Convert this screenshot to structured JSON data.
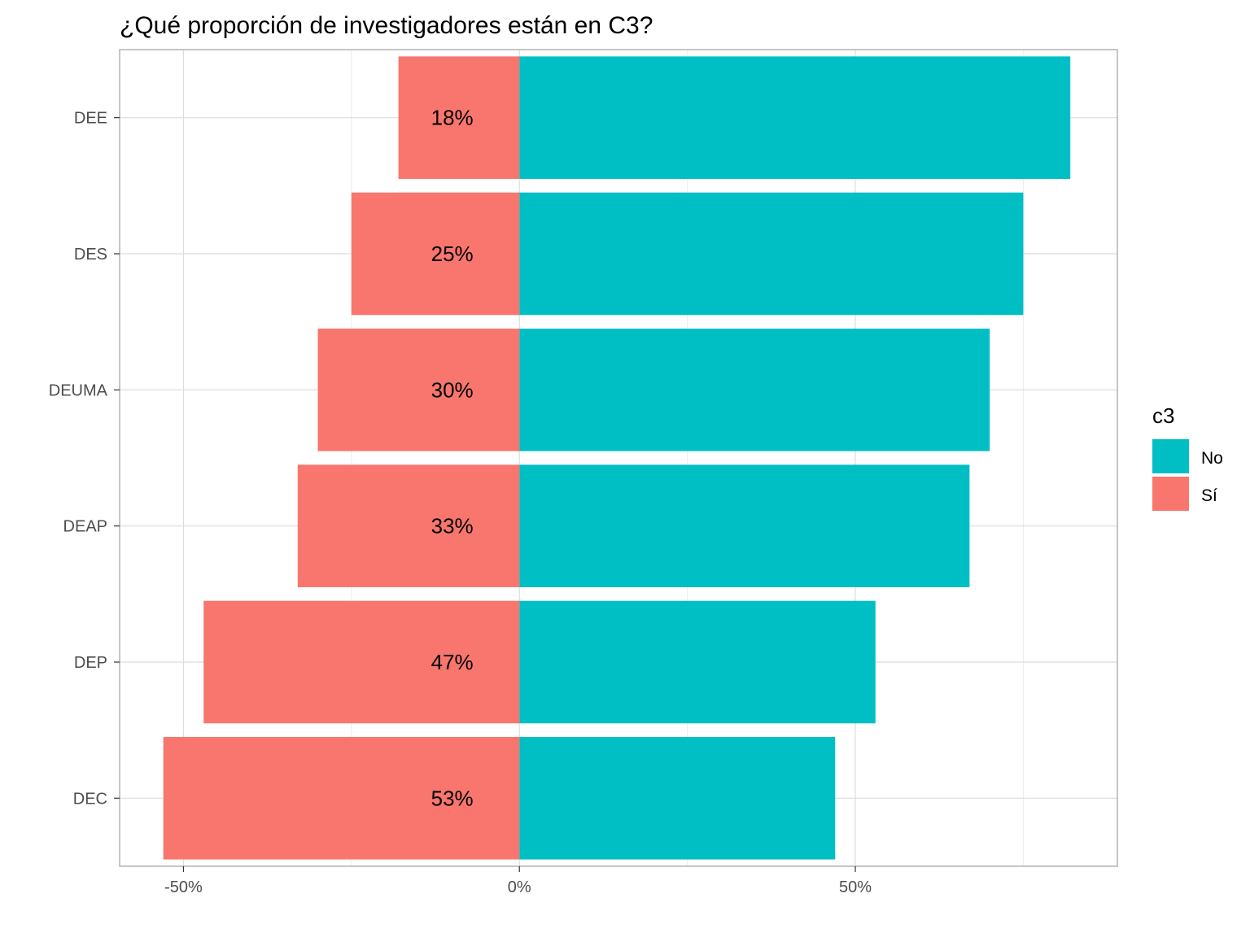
{
  "chart_data": {
    "type": "bar",
    "orientation": "horizontal",
    "diverging": true,
    "title": "¿Qué proporción de investigadores están en C3?",
    "xlabel": "",
    "ylabel": "",
    "categories": [
      "DEE",
      "DES",
      "DEUMA",
      "DEAP",
      "DEP",
      "DEC"
    ],
    "series": [
      {
        "name": "No",
        "color": "#00BFC4",
        "values": [
          82,
          75,
          70,
          67,
          53,
          47
        ]
      },
      {
        "name": "Sí",
        "color": "#F8766D",
        "values": [
          -18,
          -25,
          -30,
          -33,
          -47,
          -53
        ]
      }
    ],
    "data_labels": [
      "18%",
      "25%",
      "30%",
      "33%",
      "47%",
      "53%"
    ],
    "xlim": [
      -59.5,
      89
    ],
    "x_ticks": [
      {
        "value": -50,
        "label": "-50%"
      },
      {
        "value": 0,
        "label": "0%"
      },
      {
        "value": 50,
        "label": "50%"
      }
    ],
    "x_minor_ticks": [
      -25,
      25,
      75
    ],
    "grid": true,
    "legend": {
      "title": "c3",
      "position": "right",
      "items": [
        {
          "label": "No",
          "color": "#00BFC4"
        },
        {
          "label": "Sí",
          "color": "#F8766D"
        }
      ]
    }
  }
}
